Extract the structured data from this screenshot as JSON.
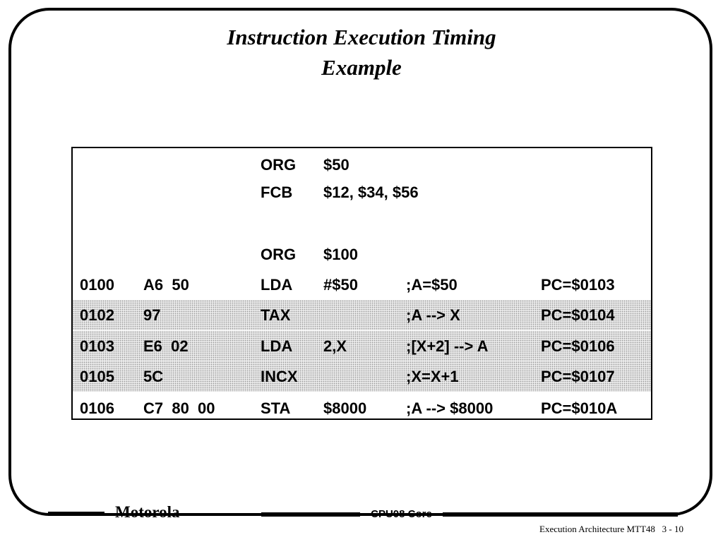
{
  "slide": {
    "title_line1": "Instruction Execution Timing",
    "title_line2": "Example"
  },
  "code": {
    "rows": [
      {
        "addr": "",
        "obj": "",
        "op": "ORG",
        "arg": "$50",
        "comment": "",
        "pc": "",
        "shaded": false
      },
      {
        "addr": "",
        "obj": "",
        "op": "FCB",
        "arg": "$12, $34, $56",
        "comment": "",
        "pc": "",
        "shaded": false
      },
      {
        "addr": "",
        "obj": "",
        "op": "",
        "arg": "",
        "comment": "",
        "pc": "",
        "shaded": false
      },
      {
        "addr": "",
        "obj": "",
        "op": "ORG",
        "arg": "$100",
        "comment": "",
        "pc": "",
        "shaded": false
      },
      {
        "addr": "0100",
        "obj": "A6  50",
        "op": "LDA",
        "arg": "#$50",
        "comment": ";A=$50",
        "pc": "PC=$0103",
        "shaded": false
      },
      {
        "addr": "0102",
        "obj": "97",
        "op": "TAX",
        "arg": "",
        "comment": ";A --> X",
        "pc": "PC=$0104",
        "shaded": true
      },
      {
        "addr": "0103",
        "obj": "E6  02",
        "op": "LDA",
        "arg": "2,X",
        "comment": ";[X+2] --> A",
        "pc": "PC=$0106",
        "shaded": true
      },
      {
        "addr": "0105",
        "obj": "5C",
        "op": "INCX",
        "arg": "",
        "comment": ";X=X+1",
        "pc": "PC=$0107",
        "shaded": true
      },
      {
        "addr": "0106",
        "obj": "C7  80  00",
        "op": "STA",
        "arg": "$8000",
        "comment": ";A --> $8000",
        "pc": "PC=$010A",
        "shaded": false
      }
    ]
  },
  "footer": {
    "brand": "Motorola",
    "course": "CPU08 Core",
    "page_ref": "Execution Architecture MTT48   3 - 10"
  }
}
